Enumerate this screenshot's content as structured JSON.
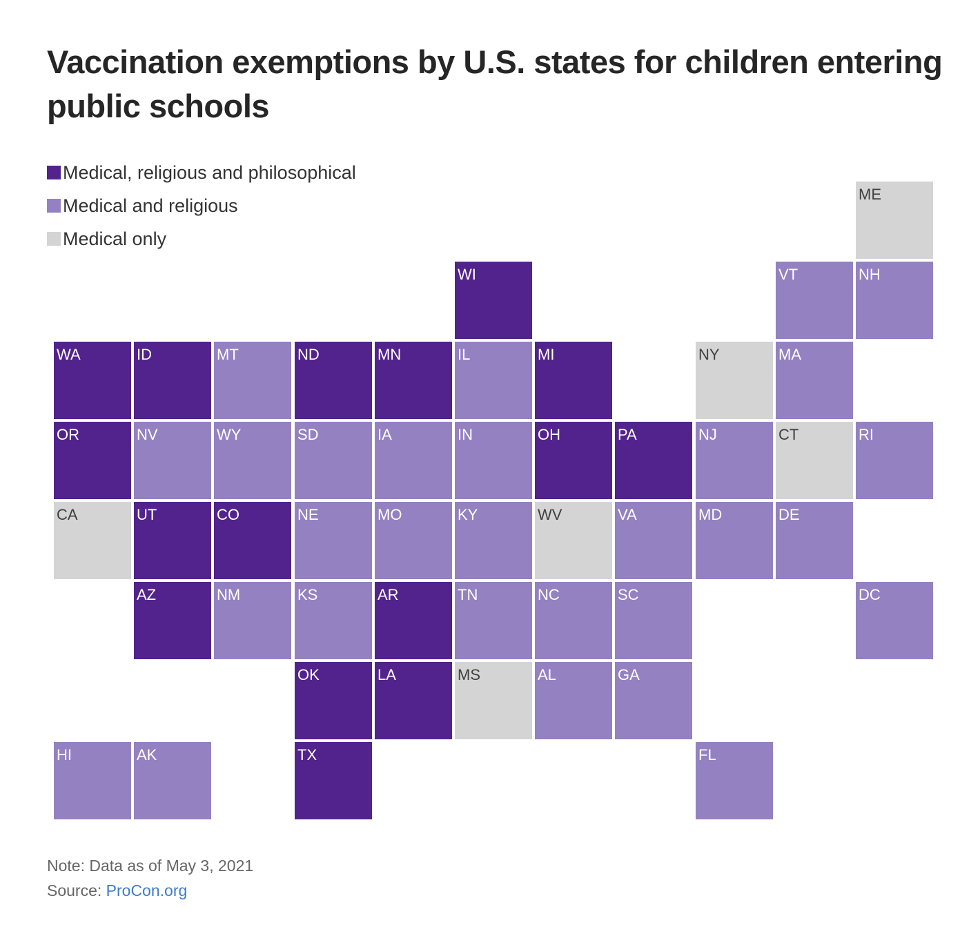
{
  "title": "Vaccination exemptions by U.S. states for children entering public schools",
  "legend": [
    {
      "key": "mrp",
      "label": "Medical, religious and philosophical",
      "color": "#52238c"
    },
    {
      "key": "mr",
      "label": "Medical and religious",
      "color": "#9481c2"
    },
    {
      "key": "m",
      "label": "Medical only",
      "color": "#d4d4d4"
    }
  ],
  "label_colors": {
    "mrp": "#ffffff",
    "mr": "#ffffff",
    "m": "#404040"
  },
  "states": [
    {
      "code": "ME",
      "row": 0,
      "col": 10,
      "cat": "m"
    },
    {
      "code": "WI",
      "row": 1,
      "col": 5,
      "cat": "mrp"
    },
    {
      "code": "VT",
      "row": 1,
      "col": 9,
      "cat": "mr"
    },
    {
      "code": "NH",
      "row": 1,
      "col": 10,
      "cat": "mr"
    },
    {
      "code": "WA",
      "row": 2,
      "col": 0,
      "cat": "mrp"
    },
    {
      "code": "ID",
      "row": 2,
      "col": 1,
      "cat": "mrp"
    },
    {
      "code": "MT",
      "row": 2,
      "col": 2,
      "cat": "mr"
    },
    {
      "code": "ND",
      "row": 2,
      "col": 3,
      "cat": "mrp"
    },
    {
      "code": "MN",
      "row": 2,
      "col": 4,
      "cat": "mrp"
    },
    {
      "code": "IL",
      "row": 2,
      "col": 5,
      "cat": "mr"
    },
    {
      "code": "MI",
      "row": 2,
      "col": 6,
      "cat": "mrp"
    },
    {
      "code": "NY",
      "row": 2,
      "col": 8,
      "cat": "m"
    },
    {
      "code": "MA",
      "row": 2,
      "col": 9,
      "cat": "mr"
    },
    {
      "code": "OR",
      "row": 3,
      "col": 0,
      "cat": "mrp"
    },
    {
      "code": "NV",
      "row": 3,
      "col": 1,
      "cat": "mr"
    },
    {
      "code": "WY",
      "row": 3,
      "col": 2,
      "cat": "mr"
    },
    {
      "code": "SD",
      "row": 3,
      "col": 3,
      "cat": "mr"
    },
    {
      "code": "IA",
      "row": 3,
      "col": 4,
      "cat": "mr"
    },
    {
      "code": "IN",
      "row": 3,
      "col": 5,
      "cat": "mr"
    },
    {
      "code": "OH",
      "row": 3,
      "col": 6,
      "cat": "mrp"
    },
    {
      "code": "PA",
      "row": 3,
      "col": 7,
      "cat": "mrp"
    },
    {
      "code": "NJ",
      "row": 3,
      "col": 8,
      "cat": "mr"
    },
    {
      "code": "CT",
      "row": 3,
      "col": 9,
      "cat": "m"
    },
    {
      "code": "RI",
      "row": 3,
      "col": 10,
      "cat": "mr"
    },
    {
      "code": "CA",
      "row": 4,
      "col": 0,
      "cat": "m"
    },
    {
      "code": "UT",
      "row": 4,
      "col": 1,
      "cat": "mrp"
    },
    {
      "code": "CO",
      "row": 4,
      "col": 2,
      "cat": "mrp"
    },
    {
      "code": "NE",
      "row": 4,
      "col": 3,
      "cat": "mr"
    },
    {
      "code": "MO",
      "row": 4,
      "col": 4,
      "cat": "mr"
    },
    {
      "code": "KY",
      "row": 4,
      "col": 5,
      "cat": "mr"
    },
    {
      "code": "WV",
      "row": 4,
      "col": 6,
      "cat": "m"
    },
    {
      "code": "VA",
      "row": 4,
      "col": 7,
      "cat": "mr"
    },
    {
      "code": "MD",
      "row": 4,
      "col": 8,
      "cat": "mr"
    },
    {
      "code": "DE",
      "row": 4,
      "col": 9,
      "cat": "mr"
    },
    {
      "code": "AZ",
      "row": 5,
      "col": 1,
      "cat": "mrp"
    },
    {
      "code": "NM",
      "row": 5,
      "col": 2,
      "cat": "mr"
    },
    {
      "code": "KS",
      "row": 5,
      "col": 3,
      "cat": "mr"
    },
    {
      "code": "AR",
      "row": 5,
      "col": 4,
      "cat": "mrp"
    },
    {
      "code": "TN",
      "row": 5,
      "col": 5,
      "cat": "mr"
    },
    {
      "code": "NC",
      "row": 5,
      "col": 6,
      "cat": "mr"
    },
    {
      "code": "SC",
      "row": 5,
      "col": 7,
      "cat": "mr"
    },
    {
      "code": "DC",
      "row": 5,
      "col": 10,
      "cat": "mr"
    },
    {
      "code": "OK",
      "row": 6,
      "col": 3,
      "cat": "mrp"
    },
    {
      "code": "LA",
      "row": 6,
      "col": 4,
      "cat": "mrp"
    },
    {
      "code": "MS",
      "row": 6,
      "col": 5,
      "cat": "m"
    },
    {
      "code": "AL",
      "row": 6,
      "col": 6,
      "cat": "mr"
    },
    {
      "code": "GA",
      "row": 6,
      "col": 7,
      "cat": "mr"
    },
    {
      "code": "HI",
      "row": 7,
      "col": 0,
      "cat": "mr"
    },
    {
      "code": "AK",
      "row": 7,
      "col": 1,
      "cat": "mr"
    },
    {
      "code": "TX",
      "row": 7,
      "col": 3,
      "cat": "mrp"
    },
    {
      "code": "FL",
      "row": 7,
      "col": 8,
      "cat": "mr"
    }
  ],
  "note": "Note: Data as of May 3, 2021",
  "source": {
    "prefix": "Source: ",
    "link_text": "ProCon.org",
    "link_color": "#3d7cc9"
  }
}
